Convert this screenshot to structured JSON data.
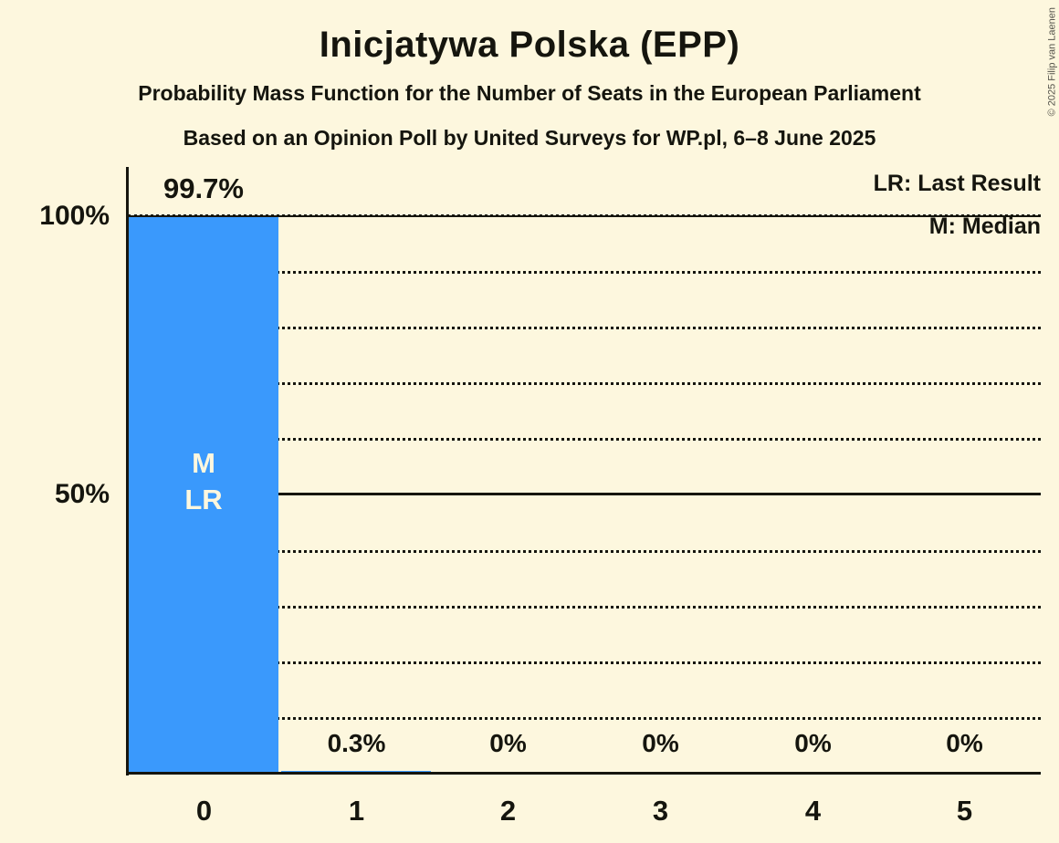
{
  "header": {
    "title": "Inicjatywa Polska (EPP)",
    "subtitle_line1": "Probability Mass Function for the Number of Seats in the European Parliament",
    "subtitle_line2": "Based on an Opinion Poll by United Surveys for WP.pl, 6–8 June 2025"
  },
  "legend": {
    "last_result": "LR: Last Result",
    "median": "M: Median"
  },
  "copyright": "© 2025 Filip van Laenen",
  "colors": {
    "background": "#FDF7DE",
    "bar": "#3A99FC",
    "text": "#15150E"
  },
  "chart_data": {
    "type": "bar",
    "title": "Inicjatywa Polska (EPP)",
    "categories": [
      "0",
      "1",
      "2",
      "3",
      "4",
      "5"
    ],
    "values": [
      99.7,
      0.3,
      0,
      0,
      0,
      0
    ],
    "value_labels": [
      "99.7%",
      "0.3%",
      "0%",
      "0%",
      "0%",
      "0%"
    ],
    "xlabel": "",
    "ylabel": "",
    "ylim": [
      0,
      100
    ],
    "yticks": [
      {
        "value": 100,
        "label": "100%"
      },
      {
        "value": 50,
        "label": "50%"
      }
    ],
    "grid": "dotted horizontal lines every 10%; solid lines at 50% and 100%",
    "legend_position": "top-right",
    "median_seat": "0",
    "last_result_seat": "0",
    "bar_annotation_lines": [
      "M",
      "LR"
    ]
  }
}
